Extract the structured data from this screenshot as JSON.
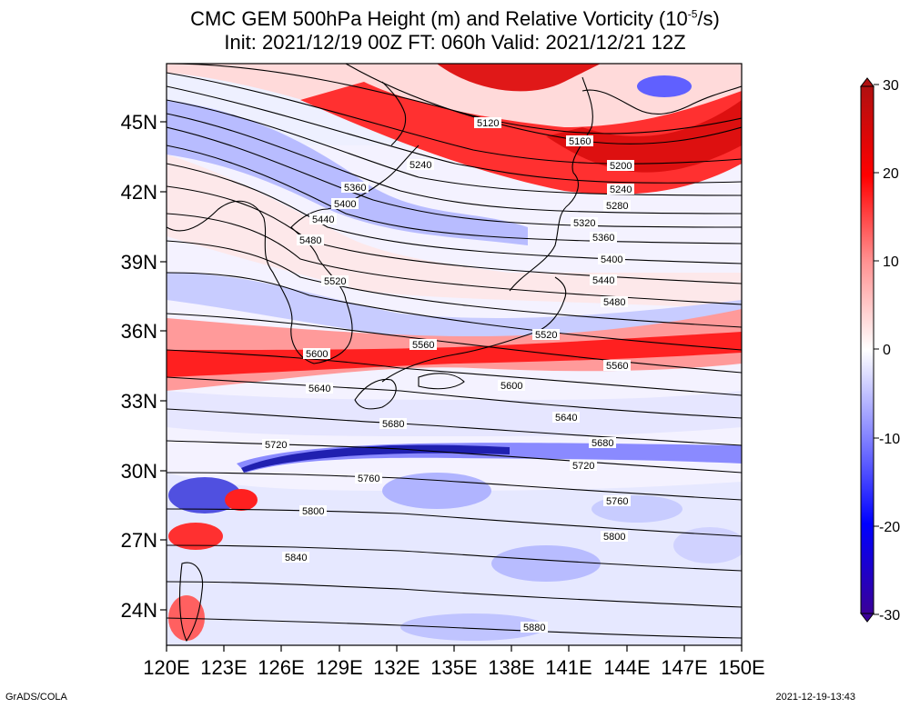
{
  "title": {
    "line1_prefix": "CMC GEM 500hPa Height (m) and Relative Vorticity (10",
    "line1_sup": "-5",
    "line1_suffix": "/s)",
    "line2": "Init: 2021/12/19 00Z  FT: 060h  Valid: 2021/12/21 12Z"
  },
  "axes": {
    "lat_labels": [
      "45N",
      "42N",
      "39N",
      "36N",
      "33N",
      "30N",
      "27N",
      "24N"
    ],
    "lon_labels": [
      "120E",
      "123E",
      "126E",
      "129E",
      "132E",
      "135E",
      "138E",
      "141E",
      "144E",
      "147E",
      "150E"
    ],
    "lat_range": [
      22.5,
      47.5
    ],
    "lon_range": [
      120,
      150
    ]
  },
  "colorbar": {
    "labels": [
      "30",
      "20",
      "10",
      "0",
      "-10",
      "-20",
      "-30"
    ],
    "range": [
      -30,
      30
    ],
    "colors": {
      "max": "#b01010",
      "high": "#ff0000",
      "zero": "#ffffff",
      "low": "#0000ff",
      "min": "#3a0098"
    }
  },
  "contours": [
    {
      "label": "5120"
    },
    {
      "label": "5160"
    },
    {
      "label": "5200"
    },
    {
      "label": "5240"
    },
    {
      "label": "5240"
    },
    {
      "label": "5280"
    },
    {
      "label": "5320"
    },
    {
      "label": "5360"
    },
    {
      "label": "5360"
    },
    {
      "label": "5400"
    },
    {
      "label": "5400"
    },
    {
      "label": "5440"
    },
    {
      "label": "5440"
    },
    {
      "label": "5480"
    },
    {
      "label": "5480"
    },
    {
      "label": "5520"
    },
    {
      "label": "5520"
    },
    {
      "label": "5560"
    },
    {
      "label": "5560"
    },
    {
      "label": "5600"
    },
    {
      "label": "5600"
    },
    {
      "label": "5640"
    },
    {
      "label": "5640"
    },
    {
      "label": "5680"
    },
    {
      "label": "5680"
    },
    {
      "label": "5720"
    },
    {
      "label": "5720"
    },
    {
      "label": "5760"
    },
    {
      "label": "5760"
    },
    {
      "label": "5800"
    },
    {
      "label": "5800"
    },
    {
      "label": "5840"
    },
    {
      "label": "5880"
    }
  ],
  "footer": {
    "credit": "GrADS/COLA",
    "timestamp": "2021-12-19-13:43"
  }
}
